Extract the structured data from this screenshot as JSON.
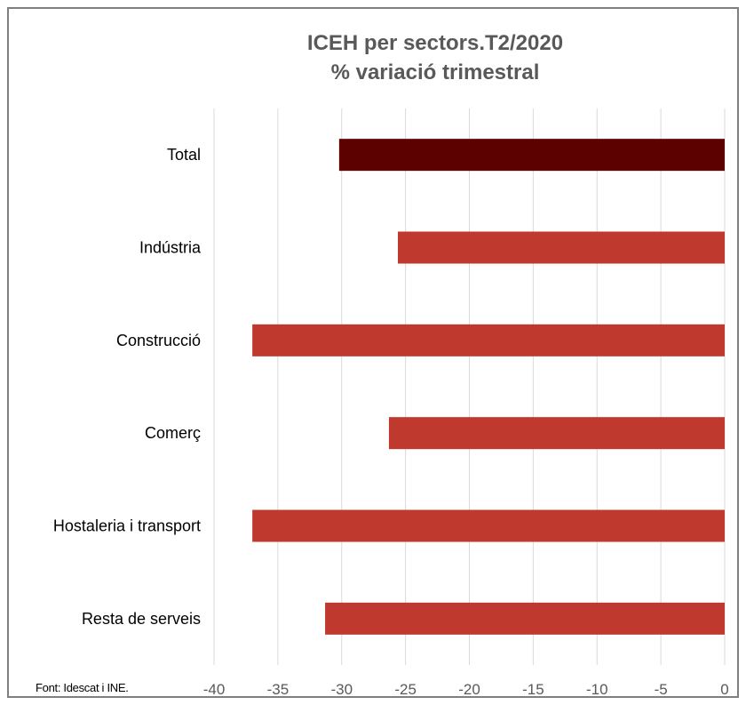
{
  "chart_data": {
    "type": "bar",
    "orientation": "horizontal",
    "title": "ICEH per sectors.T2/2020",
    "subtitle": "% variació trimestral",
    "categories": [
      "Total",
      "Indústria",
      "Construcció",
      "Comerç",
      "Hostaleria i transport",
      "Resta de serveis"
    ],
    "values": [
      -30.2,
      -25.6,
      -37.0,
      -26.3,
      -37.0,
      -31.3
    ],
    "xlim": [
      -40,
      0
    ],
    "xticks": [
      -40,
      -35,
      -30,
      -25,
      -20,
      -15,
      -10,
      -5,
      0
    ],
    "grid": "vertical",
    "colors": {
      "Total": "#5c0000",
      "default": "#c0392f"
    }
  },
  "source_note": "Font: Idescat i INE."
}
